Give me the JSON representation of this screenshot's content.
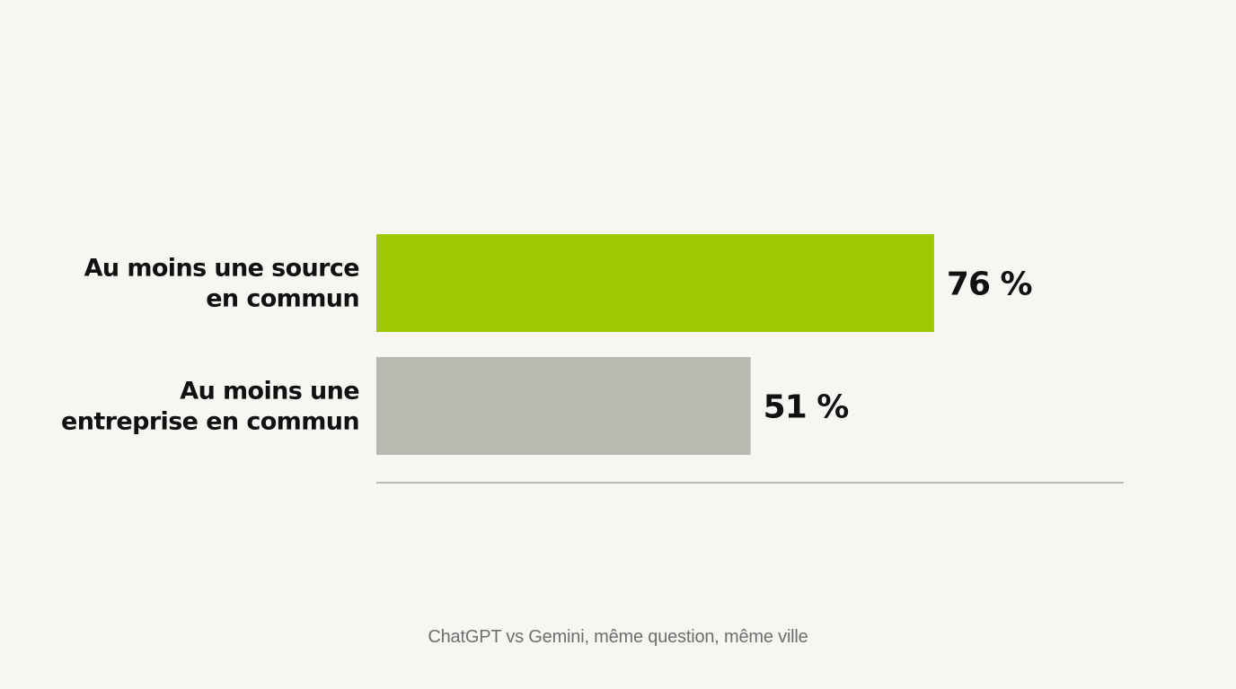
{
  "chart_data": {
    "type": "bar",
    "orientation": "horizontal",
    "categories": [
      [
        "Au moins une source",
        "en commun"
      ],
      [
        "Au moins une",
        "entreprise en commun"
      ]
    ],
    "values": [
      76,
      51
    ],
    "value_labels": [
      "76 %",
      "51 %"
    ],
    "colors": [
      "#9ec800",
      "#b8b9af"
    ],
    "xlim": [
      0,
      100
    ],
    "grid": false,
    "legend": "none",
    "title": "",
    "xlabel": "",
    "ylabel": ""
  },
  "caption": "ChatGPT vs Gemini, même question, même ville"
}
